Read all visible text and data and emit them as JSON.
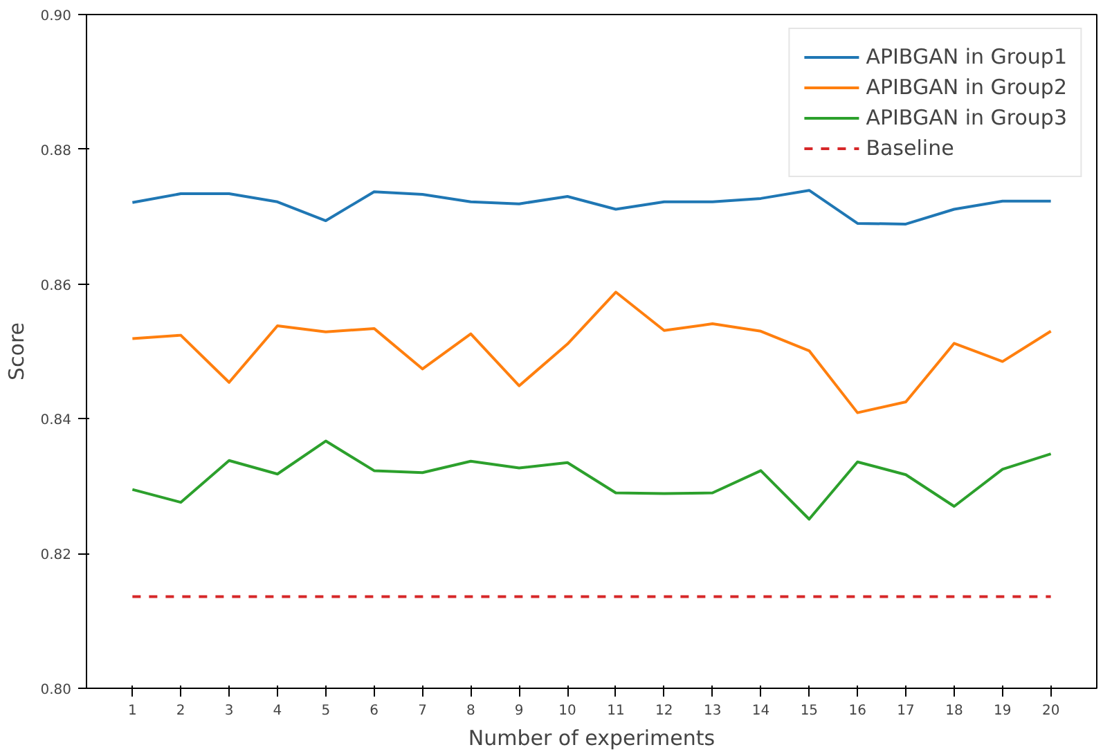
{
  "chart_data": {
    "type": "line",
    "xlabel": "Number of experiments",
    "ylabel": "Score",
    "x": [
      1,
      2,
      3,
      4,
      5,
      6,
      7,
      8,
      9,
      10,
      11,
      12,
      13,
      14,
      15,
      16,
      17,
      18,
      19,
      20
    ],
    "xlim": [
      0.05,
      20.95
    ],
    "xticks": [
      1,
      2,
      3,
      4,
      5,
      6,
      7,
      8,
      9,
      10,
      11,
      12,
      13,
      14,
      15,
      16,
      17,
      18,
      19,
      20
    ],
    "ylim": [
      0.8,
      0.9
    ],
    "yticks": [
      {
        "value": 0.8,
        "label": "0.80"
      },
      {
        "value": 0.82,
        "label": "0.82"
      },
      {
        "value": 0.84,
        "label": "0.84"
      },
      {
        "value": 0.86,
        "label": "0.86"
      },
      {
        "value": 0.88,
        "label": "0.88"
      },
      {
        "value": 0.9,
        "label": "0.90"
      }
    ],
    "grid": false,
    "legend": "top right",
    "line_style": "solid",
    "marker": "none",
    "series": [
      {
        "name": "APIBGAN in Group1",
        "color": "#1f77b4",
        "values": [
          0.8721,
          0.8734,
          0.8734,
          0.8722,
          0.8694,
          0.8737,
          0.8733,
          0.8722,
          0.8719,
          0.873,
          0.8711,
          0.8722,
          0.8722,
          0.8727,
          0.8739,
          0.869,
          0.8689,
          0.8711,
          0.8723,
          0.8723
        ]
      },
      {
        "name": "APIBGAN in Group2",
        "color": "#ff7f0e",
        "values": [
          0.8519,
          0.8524,
          0.8454,
          0.8538,
          0.8529,
          0.8534,
          0.8474,
          0.8526,
          0.8449,
          0.8511,
          0.8588,
          0.8531,
          0.8541,
          0.853,
          0.8501,
          0.8409,
          0.8425,
          0.8512,
          0.8485,
          0.853
        ]
      },
      {
        "name": "APIBGAN in Group3",
        "color": "#2ca02c",
        "values": [
          0.8295,
          0.8276,
          0.8338,
          0.8318,
          0.8367,
          0.8323,
          0.832,
          0.8337,
          0.8327,
          0.8335,
          0.829,
          0.8289,
          0.829,
          0.8323,
          0.8251,
          0.8336,
          0.8317,
          0.827,
          0.8325,
          0.8348
        ]
      },
      {
        "name": "Baseline",
        "color": "#d62728",
        "line_style": "dashed",
        "values": [
          0.8136,
          0.8136,
          0.8136,
          0.8136,
          0.8136,
          0.8136,
          0.8136,
          0.8136,
          0.8136,
          0.8136,
          0.8136,
          0.8136,
          0.8136,
          0.8136,
          0.8136,
          0.8136,
          0.8136,
          0.8136,
          0.8136,
          0.8136
        ]
      }
    ]
  }
}
